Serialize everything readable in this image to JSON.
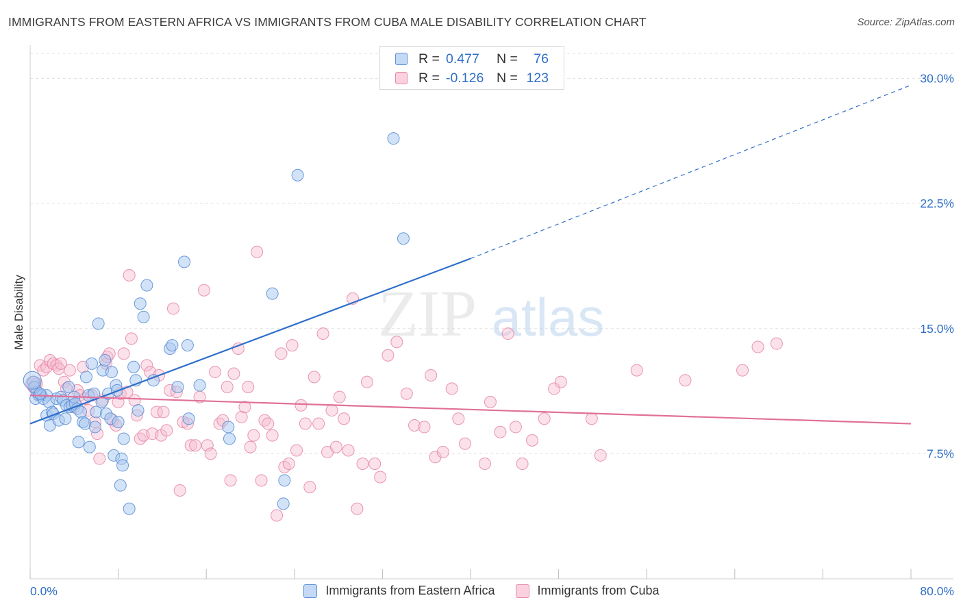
{
  "title": "IMMIGRANTS FROM EASTERN AFRICA VS IMMIGRANTS FROM CUBA MALE DISABILITY CORRELATION CHART",
  "source": "Source: ZipAtlas.com",
  "watermark": {
    "zip": "ZIP",
    "atlas": "atlas"
  },
  "legend": {
    "rows": [
      {
        "r_label": "R =",
        "r_value": "0.477",
        "n_label": "N =",
        "n_value": "76"
      },
      {
        "r_label": "R =",
        "r_value": "-0.126",
        "n_label": "N =",
        "n_value": "123"
      }
    ]
  },
  "colors": {
    "blue_fill": "#a8c8f0",
    "blue_stroke": "#5b8fd6",
    "blue_line": "#2f6fc9",
    "pink_fill": "#f7bcd0",
    "pink_stroke": "#e58aaa",
    "pink_line": "#e07099",
    "grid": "#e2e2e2",
    "axis_label": "#2f6fc9"
  },
  "chart_data": {
    "type": "scatter",
    "title": "IMMIGRANTS FROM EASTERN AFRICA VS IMMIGRANTS FROM CUBA MALE DISABILITY CORRELATION CHART",
    "xlabel": "",
    "ylabel": "Male Disability",
    "xlim": [
      0,
      80
    ],
    "ylim": [
      0,
      31.5
    ],
    "x_tick_labels": [
      {
        "value": 0,
        "label": "0.0%"
      },
      {
        "value": 80,
        "label": "80.0%"
      }
    ],
    "y_ticks": [
      {
        "value": 7.5,
        "label": "7.5%"
      },
      {
        "value": 15,
        "label": "15.0%"
      },
      {
        "value": 22.5,
        "label": "22.5%"
      },
      {
        "value": 30,
        "label": "30.0%"
      }
    ],
    "grid": true,
    "legend_position": "top-center",
    "series": [
      {
        "name": "Immigrants from Eastern Africa",
        "r": 0.477,
        "n": 76,
        "trend": {
          "x1": 0,
          "y1": 9.3,
          "x2": 40,
          "y2": 19.2,
          "dashed_to_x": 80,
          "dashed_to_y": 29.6
        },
        "points": [
          [
            0.3,
            11.8
          ],
          [
            0.5,
            10.8
          ],
          [
            0.6,
            11.2
          ],
          [
            0.8,
            11.0
          ],
          [
            1.0,
            11.0
          ],
          [
            1.2,
            10.8
          ],
          [
            1.5,
            11.0
          ],
          [
            1.5,
            9.8
          ],
          [
            1.7,
            10.6
          ],
          [
            1.8,
            9.2
          ],
          [
            2.0,
            10.0
          ],
          [
            2.1,
            9.9
          ],
          [
            2.4,
            10.8
          ],
          [
            2.6,
            9.5
          ],
          [
            2.8,
            10.9
          ],
          [
            3.0,
            10.7
          ],
          [
            3.2,
            9.6
          ],
          [
            3.3,
            10.4
          ],
          [
            3.5,
            11.5
          ],
          [
            3.6,
            10.3
          ],
          [
            3.8,
            10.4
          ],
          [
            4.0,
            10.9
          ],
          [
            4.1,
            10.5
          ],
          [
            4.3,
            10.2
          ],
          [
            4.4,
            8.2
          ],
          [
            4.6,
            10.0
          ],
          [
            4.8,
            9.4
          ],
          [
            5.0,
            9.3
          ],
          [
            5.1,
            12.1
          ],
          [
            5.3,
            11.0
          ],
          [
            5.4,
            7.9
          ],
          [
            5.6,
            12.9
          ],
          [
            5.8,
            11.1
          ],
          [
            5.9,
            9.1
          ],
          [
            6.0,
            10.0
          ],
          [
            6.2,
            15.3
          ],
          [
            6.5,
            10.6
          ],
          [
            6.6,
            12.5
          ],
          [
            6.8,
            13.1
          ],
          [
            6.9,
            9.9
          ],
          [
            7.1,
            11.1
          ],
          [
            7.3,
            9.6
          ],
          [
            7.4,
            12.4
          ],
          [
            7.6,
            7.4
          ],
          [
            7.8,
            11.6
          ],
          [
            7.9,
            11.3
          ],
          [
            8.0,
            9.4
          ],
          [
            8.2,
            5.6
          ],
          [
            8.3,
            7.2
          ],
          [
            8.4,
            6.8
          ],
          [
            8.5,
            8.4
          ],
          [
            9.0,
            4.2
          ],
          [
            9.4,
            12.7
          ],
          [
            9.6,
            11.9
          ],
          [
            9.8,
            10.1
          ],
          [
            10.0,
            16.5
          ],
          [
            10.3,
            15.7
          ],
          [
            10.6,
            17.6
          ],
          [
            11.2,
            11.9
          ],
          [
            12.7,
            13.8
          ],
          [
            12.9,
            14.0
          ],
          [
            13.4,
            11.5
          ],
          [
            14.0,
            19.0
          ],
          [
            14.3,
            14.0
          ],
          [
            14.4,
            9.6
          ],
          [
            15.4,
            11.6
          ],
          [
            18.0,
            9.1
          ],
          [
            18.1,
            8.4
          ],
          [
            22.0,
            17.1
          ],
          [
            23.0,
            4.5
          ],
          [
            23.1,
            5.9
          ],
          [
            24.3,
            24.2
          ],
          [
            33.0,
            26.4
          ],
          [
            33.9,
            20.4
          ],
          [
            0.4,
            11.5
          ],
          [
            0.9,
            11.1
          ]
        ]
      },
      {
        "name": "Immigrants from Cuba",
        "r": -0.126,
        "n": 123,
        "trend": {
          "x1": 0,
          "y1": 11.0,
          "x2": 80,
          "y2": 9.3
        },
        "points": [
          [
            0.3,
            11.5
          ],
          [
            0.6,
            11.7
          ],
          [
            0.9,
            12.8
          ],
          [
            1.2,
            12.5
          ],
          [
            1.5,
            12.7
          ],
          [
            1.8,
            13.1
          ],
          [
            2.1,
            12.9
          ],
          [
            2.4,
            12.8
          ],
          [
            2.6,
            12.6
          ],
          [
            2.8,
            12.9
          ],
          [
            3.1,
            11.8
          ],
          [
            3.3,
            11.4
          ],
          [
            3.6,
            12.5
          ],
          [
            3.8,
            10.6
          ],
          [
            4.0,
            10.3
          ],
          [
            4.3,
            11.3
          ],
          [
            4.5,
            11.0
          ],
          [
            4.8,
            12.7
          ],
          [
            5.0,
            10.8
          ],
          [
            5.3,
            10.1
          ],
          [
            5.6,
            11.0
          ],
          [
            5.9,
            9.4
          ],
          [
            6.1,
            8.7
          ],
          [
            6.3,
            7.2
          ],
          [
            6.6,
            10.7
          ],
          [
            6.9,
            12.9
          ],
          [
            7.0,
            13.3
          ],
          [
            7.2,
            13.5
          ],
          [
            7.5,
            9.5
          ],
          [
            7.8,
            9.2
          ],
          [
            8.0,
            10.6
          ],
          [
            8.2,
            11.1
          ],
          [
            8.5,
            13.5
          ],
          [
            8.8,
            11.2
          ],
          [
            9.0,
            18.2
          ],
          [
            9.2,
            14.4
          ],
          [
            9.5,
            10.7
          ],
          [
            9.7,
            9.8
          ],
          [
            10.0,
            8.4
          ],
          [
            10.3,
            8.6
          ],
          [
            10.6,
            12.8
          ],
          [
            10.9,
            12.4
          ],
          [
            11.1,
            8.7
          ],
          [
            11.5,
            10.0
          ],
          [
            11.7,
            12.2
          ],
          [
            11.9,
            8.6
          ],
          [
            12.1,
            10.0
          ],
          [
            12.4,
            8.9
          ],
          [
            12.7,
            11.3
          ],
          [
            13.0,
            16.2
          ],
          [
            13.3,
            11.2
          ],
          [
            13.6,
            5.3
          ],
          [
            13.9,
            9.4
          ],
          [
            14.3,
            9.3
          ],
          [
            14.6,
            8.0
          ],
          [
            15.0,
            8.0
          ],
          [
            15.4,
            10.9
          ],
          [
            15.8,
            17.3
          ],
          [
            16.1,
            8.0
          ],
          [
            16.4,
            7.5
          ],
          [
            16.8,
            12.4
          ],
          [
            17.2,
            9.3
          ],
          [
            17.5,
            9.5
          ],
          [
            17.9,
            11.5
          ],
          [
            18.2,
            5.9
          ],
          [
            18.5,
            12.3
          ],
          [
            18.9,
            13.8
          ],
          [
            19.2,
            9.7
          ],
          [
            19.5,
            10.3
          ],
          [
            19.8,
            11.5
          ],
          [
            20.0,
            7.9
          ],
          [
            20.3,
            8.6
          ],
          [
            20.6,
            19.6
          ],
          [
            21.0,
            5.9
          ],
          [
            21.3,
            9.5
          ],
          [
            21.6,
            9.3
          ],
          [
            22.0,
            8.6
          ],
          [
            22.4,
            3.8
          ],
          [
            22.8,
            13.5
          ],
          [
            23.1,
            6.7
          ],
          [
            23.5,
            6.9
          ],
          [
            23.8,
            14.0
          ],
          [
            24.2,
            7.7
          ],
          [
            24.6,
            10.4
          ],
          [
            25.0,
            9.3
          ],
          [
            25.4,
            5.5
          ],
          [
            25.8,
            12.1
          ],
          [
            26.2,
            9.3
          ],
          [
            26.6,
            14.7
          ],
          [
            27.0,
            7.6
          ],
          [
            27.4,
            10.1
          ],
          [
            27.8,
            7.9
          ],
          [
            28.1,
            10.9
          ],
          [
            28.5,
            9.6
          ],
          [
            28.9,
            7.7
          ],
          [
            29.3,
            16.8
          ],
          [
            29.7,
            4.2
          ],
          [
            30.2,
            6.9
          ],
          [
            30.6,
            11.8
          ],
          [
            31.3,
            6.9
          ],
          [
            31.8,
            6.1
          ],
          [
            32.5,
            13.4
          ],
          [
            33.3,
            14.2
          ],
          [
            34.2,
            11.1
          ],
          [
            34.9,
            9.2
          ],
          [
            35.8,
            9.1
          ],
          [
            36.4,
            12.2
          ],
          [
            36.8,
            7.3
          ],
          [
            37.5,
            7.6
          ],
          [
            38.3,
            11.4
          ],
          [
            38.9,
            9.6
          ],
          [
            39.5,
            8.1
          ],
          [
            41.3,
            6.9
          ],
          [
            41.8,
            10.6
          ],
          [
            42.7,
            8.8
          ],
          [
            43.4,
            14.7
          ],
          [
            44.1,
            9.1
          ],
          [
            44.7,
            6.9
          ],
          [
            45.6,
            8.3
          ],
          [
            46.7,
            9.6
          ],
          [
            47.6,
            11.4
          ],
          [
            48.2,
            11.8
          ],
          [
            51.0,
            9.6
          ],
          [
            51.8,
            7.4
          ],
          [
            55.1,
            12.5
          ],
          [
            59.5,
            11.9
          ],
          [
            64.7,
            12.5
          ],
          [
            66.1,
            13.9
          ],
          [
            67.8,
            14.1
          ]
        ]
      }
    ]
  },
  "bottom_legend": [
    {
      "label": "Immigrants from Eastern Africa"
    },
    {
      "label": "Immigrants from Cuba"
    }
  ]
}
